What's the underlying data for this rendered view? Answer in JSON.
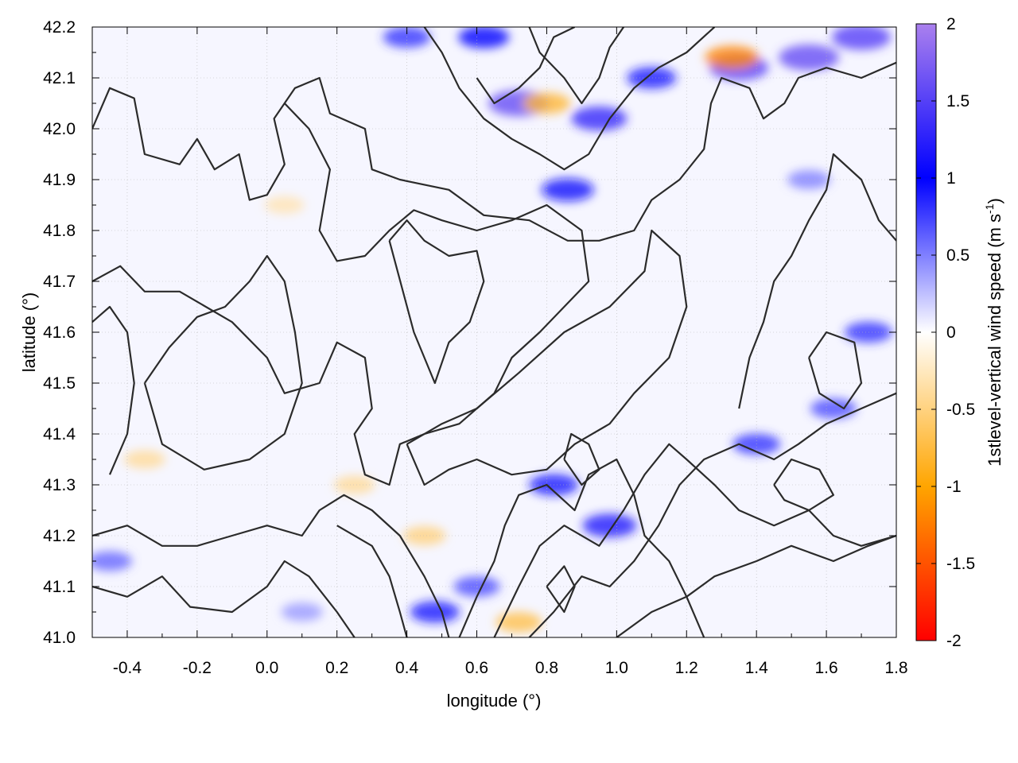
{
  "chart_data": {
    "type": "heatmap",
    "title": "",
    "xlabel": "longitude (°)",
    "ylabel": "latitude (°)",
    "xlim": [
      -0.5,
      1.8
    ],
    "ylim": [
      41.0,
      42.2
    ],
    "x_ticks": [
      -0.4,
      -0.2,
      0.0,
      0.2,
      0.4,
      0.6,
      0.8,
      1.0,
      1.2,
      1.4,
      1.6,
      1.8
    ],
    "x_tick_labels": [
      "-0.4",
      "-0.2",
      "0.0",
      "0.2",
      "0.4",
      "0.6",
      "0.8",
      "1.0",
      "1.2",
      "1.4",
      "1.6",
      "1.8"
    ],
    "y_ticks": [
      41.0,
      41.1,
      41.2,
      41.3,
      41.4,
      41.5,
      41.6,
      41.7,
      41.8,
      41.9,
      42.0,
      42.1,
      42.2
    ],
    "y_tick_labels": [
      "41.0",
      "41.1",
      "41.2",
      "41.3",
      "41.4",
      "41.5",
      "41.6",
      "41.7",
      "41.8",
      "41.9",
      "42.0",
      "42.1",
      "42.2"
    ],
    "grid": true,
    "colorbar": {
      "label": "1stlevel-vertical wind speed (m s",
      "label_superscript": "-1",
      "label_close": ")",
      "range": [
        -2,
        2
      ],
      "ticks": [
        2,
        1.5,
        1,
        0.5,
        0,
        -0.5,
        -1,
        -1.5,
        -2
      ],
      "tick_labels": [
        "2",
        "1.5",
        "1",
        "0.5",
        "0",
        "-0.5",
        "-1",
        "-1.5",
        "-2"
      ],
      "palette": [
        {
          "v": -2.0,
          "color": "#ff0000"
        },
        {
          "v": -1.0,
          "color": "#ffa500"
        },
        {
          "v": 0.0,
          "color": "#ffffff"
        },
        {
          "v": 1.0,
          "color": "#0000ff"
        },
        {
          "v": 2.0,
          "color": "#aa80ee"
        }
      ]
    },
    "field_hotspots": [
      {
        "x": 0.72,
        "y": 42.05,
        "value": 1.6
      },
      {
        "x": 0.95,
        "y": 42.02,
        "value": 1.3
      },
      {
        "x": 1.35,
        "y": 42.12,
        "value": 1.5
      },
      {
        "x": 1.55,
        "y": 42.14,
        "value": 1.6
      },
      {
        "x": 1.7,
        "y": 42.18,
        "value": 1.5
      },
      {
        "x": 0.86,
        "y": 41.88,
        "value": 1.1
      },
      {
        "x": 0.62,
        "y": 42.18,
        "value": 1.0
      },
      {
        "x": 0.4,
        "y": 42.18,
        "value": 0.8
      },
      {
        "x": 0.98,
        "y": 41.22,
        "value": 1.2
      },
      {
        "x": 0.82,
        "y": 41.3,
        "value": 0.9
      },
      {
        "x": 0.48,
        "y": 41.05,
        "value": 0.9
      },
      {
        "x": 0.6,
        "y": 41.1,
        "value": 0.7
      },
      {
        "x": 1.4,
        "y": 41.38,
        "value": 0.8
      },
      {
        "x": 1.62,
        "y": 41.45,
        "value": 0.7
      },
      {
        "x": 1.72,
        "y": 41.6,
        "value": 0.8
      },
      {
        "x": 1.55,
        "y": 41.9,
        "value": 0.5
      },
      {
        "x": 1.1,
        "y": 42.1,
        "value": 0.9
      },
      {
        "x": -0.45,
        "y": 41.15,
        "value": 0.6
      },
      {
        "x": 0.1,
        "y": 41.05,
        "value": 0.4
      },
      {
        "x": 1.33,
        "y": 42.14,
        "value": -1.2
      },
      {
        "x": 0.8,
        "y": 42.05,
        "value": -0.8
      },
      {
        "x": 0.25,
        "y": 41.3,
        "value": -0.4
      },
      {
        "x": 0.45,
        "y": 41.2,
        "value": -0.5
      },
      {
        "x": 0.72,
        "y": 41.03,
        "value": -0.7
      },
      {
        "x": -0.35,
        "y": 41.35,
        "value": -0.4
      },
      {
        "x": 0.05,
        "y": 41.85,
        "value": -0.3
      }
    ],
    "contours": [
      [
        [
          -0.5,
          42.0
        ],
        [
          -0.45,
          42.08
        ],
        [
          -0.38,
          42.06
        ],
        [
          -0.35,
          41.95
        ],
        [
          -0.25,
          41.93
        ],
        [
          -0.2,
          41.98
        ],
        [
          -0.15,
          41.92
        ],
        [
          -0.08,
          41.95
        ],
        [
          -0.05,
          41.86
        ],
        [
          0.0,
          41.87
        ],
        [
          0.05,
          41.93
        ],
        [
          0.02,
          42.02
        ],
        [
          0.08,
          42.08
        ],
        [
          0.15,
          42.1
        ],
        [
          0.18,
          42.03
        ],
        [
          0.28,
          42.0
        ],
        [
          0.3,
          41.92
        ],
        [
          0.38,
          41.9
        ],
        [
          0.52,
          41.88
        ],
        [
          0.62,
          41.83
        ],
        [
          0.75,
          41.82
        ],
        [
          0.86,
          41.78
        ],
        [
          0.95,
          41.78
        ],
        [
          1.05,
          41.8
        ],
        [
          1.1,
          41.86
        ],
        [
          1.18,
          41.9
        ],
        [
          1.25,
          41.96
        ],
        [
          1.27,
          42.05
        ],
        [
          1.3,
          42.1
        ],
        [
          1.38,
          42.08
        ],
        [
          1.42,
          42.02
        ],
        [
          1.48,
          42.05
        ],
        [
          1.52,
          42.1
        ],
        [
          1.6,
          42.12
        ],
        [
          1.7,
          42.1
        ],
        [
          1.8,
          42.13
        ]
      ],
      [
        [
          -0.35,
          41.5
        ],
        [
          -0.3,
          41.38
        ],
        [
          -0.18,
          41.33
        ],
        [
          -0.05,
          41.35
        ],
        [
          0.05,
          41.4
        ],
        [
          0.1,
          41.5
        ],
        [
          0.08,
          41.6
        ],
        [
          0.05,
          41.7
        ],
        [
          0.0,
          41.75
        ],
        [
          -0.05,
          41.7
        ],
        [
          -0.12,
          41.65
        ],
        [
          -0.2,
          41.63
        ],
        [
          -0.28,
          41.57
        ],
        [
          -0.35,
          41.5
        ]
      ],
      [
        [
          -0.5,
          41.7
        ],
        [
          -0.42,
          41.73
        ],
        [
          -0.35,
          41.68
        ],
        [
          -0.25,
          41.68
        ],
        [
          -0.1,
          41.62
        ],
        [
          0.0,
          41.55
        ],
        [
          0.05,
          41.48
        ],
        [
          0.15,
          41.5
        ],
        [
          0.2,
          41.58
        ],
        [
          0.28,
          41.55
        ],
        [
          0.3,
          41.45
        ],
        [
          0.25,
          41.4
        ],
        [
          0.28,
          41.32
        ],
        [
          0.35,
          41.3
        ],
        [
          0.38,
          41.38
        ],
        [
          0.45,
          41.4
        ],
        [
          0.55,
          41.42
        ],
        [
          0.65,
          41.48
        ],
        [
          0.7,
          41.55
        ],
        [
          0.78,
          41.6
        ],
        [
          0.85,
          41.65
        ],
        [
          0.92,
          41.7
        ],
        [
          0.9,
          41.8
        ],
        [
          0.8,
          41.85
        ],
        [
          0.7,
          41.82
        ],
        [
          0.6,
          41.8
        ],
        [
          0.5,
          41.82
        ],
        [
          0.42,
          41.84
        ],
        [
          0.35,
          41.8
        ],
        [
          0.28,
          41.75
        ],
        [
          0.2,
          41.74
        ],
        [
          0.15,
          41.8
        ],
        [
          0.18,
          41.92
        ],
        [
          0.12,
          42.0
        ],
        [
          0.05,
          42.05
        ]
      ],
      [
        [
          0.35,
          41.78
        ],
        [
          0.42,
          41.6
        ],
        [
          0.48,
          41.5
        ],
        [
          0.52,
          41.58
        ],
        [
          0.58,
          41.62
        ],
        [
          0.62,
          41.7
        ],
        [
          0.6,
          41.76
        ],
        [
          0.52,
          41.75
        ],
        [
          0.45,
          41.78
        ],
        [
          0.4,
          41.82
        ],
        [
          0.35,
          41.78
        ]
      ],
      [
        [
          0.4,
          41.38
        ],
        [
          0.5,
          41.42
        ],
        [
          0.6,
          41.45
        ],
        [
          0.72,
          41.52
        ],
        [
          0.85,
          41.6
        ],
        [
          0.98,
          41.65
        ],
        [
          1.08,
          41.72
        ],
        [
          1.1,
          41.8
        ],
        [
          1.18,
          41.75
        ],
        [
          1.2,
          41.65
        ],
        [
          1.15,
          41.55
        ],
        [
          1.05,
          41.48
        ],
        [
          0.98,
          41.42
        ],
        [
          0.88,
          41.38
        ],
        [
          0.8,
          41.33
        ],
        [
          0.7,
          41.32
        ],
        [
          0.6,
          41.35
        ],
        [
          0.52,
          41.33
        ],
        [
          0.45,
          41.3
        ],
        [
          0.4,
          41.38
        ]
      ],
      [
        [
          -0.5,
          41.2
        ],
        [
          -0.4,
          41.22
        ],
        [
          -0.3,
          41.18
        ],
        [
          -0.2,
          41.18
        ],
        [
          -0.1,
          41.2
        ],
        [
          0.0,
          41.22
        ],
        [
          0.1,
          41.2
        ],
        [
          0.15,
          41.25
        ],
        [
          0.22,
          41.28
        ],
        [
          0.3,
          41.25
        ],
        [
          0.38,
          41.2
        ],
        [
          0.45,
          41.12
        ],
        [
          0.5,
          41.05
        ],
        [
          0.52,
          41.0
        ]
      ],
      [
        [
          -0.5,
          41.1
        ],
        [
          -0.4,
          41.08
        ],
        [
          -0.3,
          41.12
        ],
        [
          -0.22,
          41.06
        ],
        [
          -0.1,
          41.05
        ],
        [
          0.0,
          41.1
        ],
        [
          0.05,
          41.15
        ],
        [
          0.12,
          41.12
        ],
        [
          0.2,
          41.05
        ],
        [
          0.25,
          41.0
        ]
      ],
      [
        [
          0.55,
          41.0
        ],
        [
          0.6,
          41.08
        ],
        [
          0.65,
          41.15
        ],
        [
          0.68,
          41.22
        ],
        [
          0.72,
          41.28
        ],
        [
          0.8,
          41.3
        ],
        [
          0.88,
          41.25
        ],
        [
          0.92,
          41.32
        ],
        [
          1.0,
          41.35
        ],
        [
          1.05,
          41.28
        ],
        [
          1.08,
          41.2
        ],
        [
          1.15,
          41.15
        ],
        [
          1.2,
          41.08
        ],
        [
          1.25,
          41.0
        ]
      ],
      [
        [
          0.65,
          41.0
        ],
        [
          0.72,
          41.1
        ],
        [
          0.78,
          41.18
        ],
        [
          0.85,
          41.22
        ],
        [
          0.95,
          41.18
        ],
        [
          1.02,
          41.25
        ],
        [
          1.08,
          41.32
        ],
        [
          1.15,
          41.38
        ],
        [
          1.2,
          41.35
        ],
        [
          1.28,
          41.3
        ],
        [
          1.35,
          41.25
        ],
        [
          1.45,
          41.22
        ],
        [
          1.55,
          41.25
        ],
        [
          1.62,
          41.2
        ],
        [
          1.7,
          41.18
        ],
        [
          1.8,
          41.2
        ]
      ],
      [
        [
          0.75,
          41.0
        ],
        [
          0.82,
          41.05
        ],
        [
          0.9,
          41.12
        ],
        [
          0.98,
          41.1
        ],
        [
          1.05,
          41.15
        ],
        [
          1.12,
          41.22
        ],
        [
          1.18,
          41.3
        ],
        [
          1.25,
          41.35
        ],
        [
          1.35,
          41.38
        ],
        [
          1.45,
          41.35
        ],
        [
          1.52,
          41.38
        ],
        [
          1.6,
          41.42
        ],
        [
          1.7,
          41.45
        ],
        [
          1.8,
          41.48
        ]
      ],
      [
        [
          1.0,
          41.0
        ],
        [
          1.1,
          41.05
        ],
        [
          1.2,
          41.08
        ],
        [
          1.28,
          41.12
        ],
        [
          1.4,
          41.15
        ],
        [
          1.5,
          41.18
        ],
        [
          1.62,
          41.15
        ],
        [
          1.72,
          41.18
        ],
        [
          1.8,
          41.2
        ]
      ],
      [
        [
          1.35,
          41.45
        ],
        [
          1.38,
          41.55
        ],
        [
          1.42,
          41.62
        ],
        [
          1.45,
          41.7
        ],
        [
          1.5,
          41.75
        ],
        [
          1.55,
          41.82
        ],
        [
          1.6,
          41.88
        ],
        [
          1.62,
          41.95
        ],
        [
          1.7,
          41.9
        ],
        [
          1.75,
          41.82
        ],
        [
          1.8,
          41.78
        ]
      ],
      [
        [
          1.55,
          41.55
        ],
        [
          1.6,
          41.6
        ],
        [
          1.68,
          41.58
        ],
        [
          1.7,
          41.5
        ],
        [
          1.65,
          41.45
        ],
        [
          1.58,
          41.48
        ],
        [
          1.55,
          41.55
        ]
      ],
      [
        [
          0.6,
          42.1
        ],
        [
          0.65,
          42.05
        ],
        [
          0.72,
          42.08
        ],
        [
          0.78,
          42.12
        ],
        [
          0.82,
          42.18
        ],
        [
          0.88,
          42.2
        ]
      ],
      [
        [
          0.45,
          42.2
        ],
        [
          0.5,
          42.15
        ],
        [
          0.55,
          42.08
        ],
        [
          0.62,
          42.02
        ],
        [
          0.7,
          41.98
        ],
        [
          0.78,
          41.95
        ],
        [
          0.85,
          41.92
        ],
        [
          0.92,
          41.95
        ],
        [
          0.98,
          42.02
        ],
        [
          1.05,
          42.08
        ],
        [
          1.12,
          42.12
        ],
        [
          1.2,
          42.15
        ],
        [
          1.28,
          42.2
        ]
      ],
      [
        [
          0.75,
          42.2
        ],
        [
          0.78,
          42.15
        ],
        [
          0.85,
          42.1
        ],
        [
          0.9,
          42.05
        ],
        [
          0.95,
          42.1
        ],
        [
          0.98,
          42.16
        ],
        [
          1.02,
          42.2
        ]
      ],
      [
        [
          -0.45,
          41.32
        ],
        [
          -0.4,
          41.4
        ],
        [
          -0.38,
          41.5
        ],
        [
          -0.4,
          41.6
        ],
        [
          -0.45,
          41.65
        ],
        [
          -0.5,
          41.62
        ]
      ],
      [
        [
          0.2,
          41.22
        ],
        [
          0.3,
          41.18
        ],
        [
          0.35,
          41.12
        ],
        [
          0.38,
          41.05
        ],
        [
          0.4,
          41.0
        ]
      ],
      [
        [
          1.45,
          41.3
        ],
        [
          1.5,
          41.35
        ],
        [
          1.58,
          41.33
        ],
        [
          1.62,
          41.28
        ],
        [
          1.55,
          41.25
        ],
        [
          1.48,
          41.27
        ],
        [
          1.45,
          41.3
        ]
      ],
      [
        [
          0.85,
          41.35
        ],
        [
          0.9,
          41.3
        ],
        [
          0.95,
          41.33
        ],
        [
          0.92,
          41.38
        ],
        [
          0.87,
          41.4
        ],
        [
          0.85,
          41.35
        ]
      ],
      [
        [
          0.8,
          41.1
        ],
        [
          0.85,
          41.05
        ],
        [
          0.88,
          41.1
        ],
        [
          0.85,
          41.14
        ],
        [
          0.8,
          41.1
        ]
      ]
    ]
  }
}
